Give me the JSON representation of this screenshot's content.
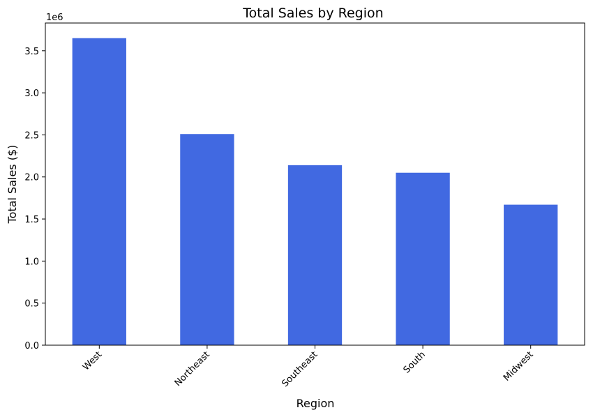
{
  "chart_data": {
    "type": "bar",
    "title": "Total Sales by Region",
    "xlabel": "Region",
    "ylabel": "Total Sales ($)",
    "offset_text": "1e6",
    "categories": [
      "West",
      "Northeast",
      "Southeast",
      "South",
      "Midwest"
    ],
    "values": [
      3650000,
      2510000,
      2140000,
      2050000,
      1670000
    ],
    "ylim": [
      0,
      3830000
    ],
    "yticks": [
      0,
      500000,
      1000000,
      1500000,
      2000000,
      2500000,
      3000000,
      3500000
    ],
    "ytick_labels": [
      "0.0",
      "0.5",
      "1.0",
      "1.5",
      "2.0",
      "2.5",
      "3.0",
      "3.5"
    ],
    "bar_color": "#4169e1",
    "grid": false,
    "legend": "none"
  }
}
